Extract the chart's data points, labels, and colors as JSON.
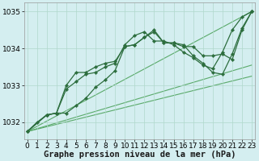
{
  "bg_color": "#d4eef0",
  "grid_color": "#b0d8cc",
  "dark_green": "#2d6e3e",
  "light_green": "#5aaa6a",
  "xlabel": "Graphe pression niveau de la mer (hPa)",
  "xlabel_fontsize": 7.5,
  "tick_fontsize": 6.5,
  "xlim": [
    -0.3,
    23.3
  ],
  "ylim": [
    1031.55,
    1035.25
  ],
  "yticks": [
    1032,
    1033,
    1034,
    1035
  ],
  "xticks": [
    0,
    1,
    2,
    3,
    4,
    5,
    6,
    7,
    8,
    9,
    10,
    11,
    12,
    13,
    14,
    15,
    16,
    17,
    18,
    19,
    20,
    21,
    22,
    23
  ],
  "series_dark": [
    {
      "x": [
        0,
        1,
        2,
        3,
        4,
        5,
        6,
        7,
        8,
        9,
        10,
        11,
        12,
        13,
        14,
        15,
        16,
        17,
        18,
        19,
        20,
        21,
        22,
        23
      ],
      "y": [
        1031.75,
        1032.0,
        1032.2,
        1032.25,
        1032.25,
        1032.45,
        1032.65,
        1032.95,
        1033.15,
        1033.4,
        1034.05,
        1034.1,
        1034.3,
        1034.45,
        1034.15,
        1034.15,
        1034.1,
        1033.8,
        1033.6,
        1033.35,
        1033.3,
        1033.85,
        1034.55,
        1035.0
      ]
    },
    {
      "x": [
        0,
        2,
        3,
        4,
        5,
        6,
        7,
        8,
        9,
        10,
        11,
        12,
        13,
        14,
        15,
        16,
        17,
        18,
        19,
        20,
        21,
        22,
        23
      ],
      "y": [
        1031.75,
        1032.2,
        1032.25,
        1033.0,
        1033.35,
        1033.35,
        1033.5,
        1033.6,
        1033.65,
        1034.05,
        1034.1,
        1034.3,
        1034.5,
        1034.15,
        1034.15,
        1034.05,
        1034.05,
        1033.8,
        1033.8,
        1033.85,
        1033.7,
        1034.5,
        1035.0
      ]
    },
    {
      "x": [
        0,
        2,
        3,
        4,
        5,
        6,
        7,
        8,
        9,
        10,
        11,
        12,
        13,
        14,
        15,
        16,
        17,
        18,
        19,
        20,
        21,
        22,
        23
      ],
      "y": [
        1031.75,
        1032.2,
        1032.25,
        1032.9,
        1033.1,
        1033.3,
        1033.35,
        1033.5,
        1033.6,
        1034.1,
        1034.35,
        1034.45,
        1034.2,
        1034.2,
        1034.1,
        1033.9,
        1033.75,
        1033.55,
        1033.45,
        1033.9,
        1034.5,
        1034.85,
        1035.0
      ]
    }
  ],
  "series_light": [
    {
      "x": [
        0,
        23
      ],
      "y": [
        1031.75,
        1035.0
      ]
    },
    {
      "x": [
        0,
        23
      ],
      "y": [
        1031.75,
        1033.55
      ]
    },
    {
      "x": [
        0,
        23
      ],
      "y": [
        1031.75,
        1033.25
      ]
    }
  ]
}
